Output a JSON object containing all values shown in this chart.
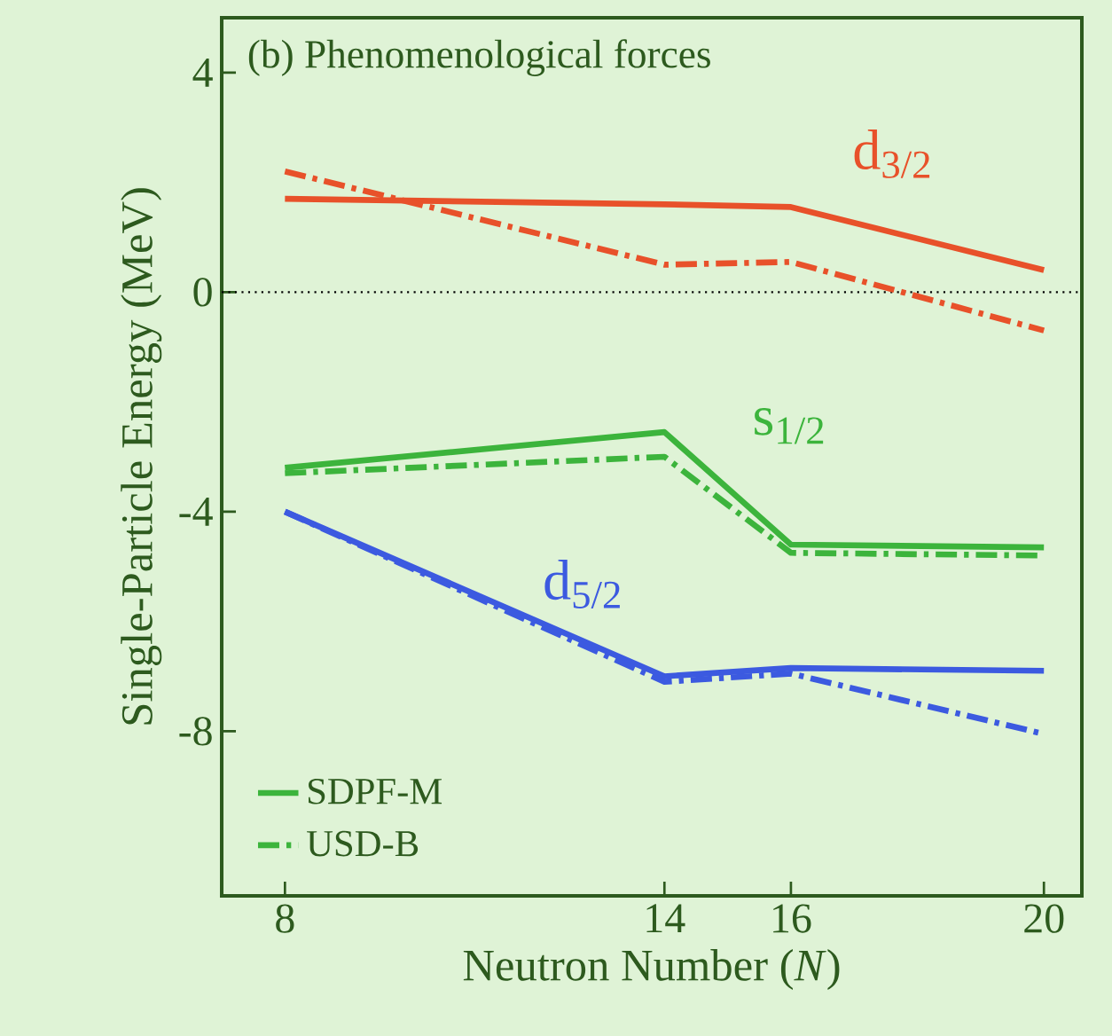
{
  "chart_data": {
    "type": "line",
    "title": "(b) Phenomenological forces",
    "xlabel": "Neutron Number (*N*)",
    "ylabel": "Single-Particle Energy (MeV)",
    "x": [
      8,
      14,
      16,
      20
    ],
    "series": [
      {
        "color": "#e8512a",
        "line_style": "solid",
        "values": [
          1.7,
          1.6,
          1.55,
          0.4
        ]
      },
      {
        "color": "#e8512a",
        "line_style": "dashdot",
        "values": [
          2.2,
          0.5,
          0.55,
          -0.7
        ]
      },
      {
        "name": "SDPF-M",
        "color": "#3cb43c",
        "line_style": "solid",
        "values": [
          -3.2,
          -2.55,
          -4.6,
          -4.65
        ]
      },
      {
        "name": "USD-B",
        "color": "#3cb43c",
        "line_style": "dashdot",
        "values": [
          -3.3,
          -3.0,
          -4.75,
          -4.8
        ]
      },
      {
        "color": "#3c5ae0",
        "line_style": "solid",
        "values": [
          -4.0,
          -7.0,
          -6.85,
          -6.9
        ]
      },
      {
        "color": "#3c5ae0",
        "line_style": "dashdot",
        "values": [
          -4.0,
          -7.1,
          -6.95,
          -8.05
        ]
      }
    ],
    "annotations": [
      "d$_{3/2}$",
      "s$_{1/2}$",
      "d$_{5/2}$"
    ],
    "ref_lines": [
      {
        "axis": "y",
        "value": 0,
        "color": "#000000",
        "line_style": "dotted"
      }
    ],
    "xlim": [
      7,
      20.6
    ],
    "ylim": [
      -11,
      5
    ],
    "xticks": [
      8,
      14,
      16,
      20
    ],
    "yticks": [
      -8,
      -4,
      0,
      4
    ],
    "legend": "bottom left"
  }
}
